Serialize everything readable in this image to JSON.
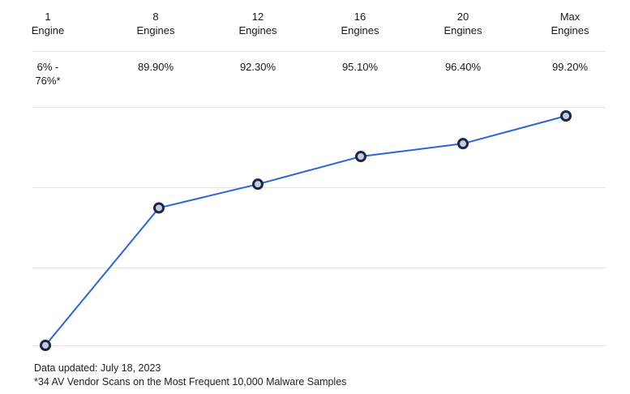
{
  "columns": [
    {
      "top": "1",
      "bottom": "Engine",
      "rate_lines": [
        "6% -",
        "76%*"
      ]
    },
    {
      "top": "8",
      "bottom": "Engines",
      "rate_lines": [
        "89.90%"
      ]
    },
    {
      "top": "12",
      "bottom": "Engines",
      "rate_lines": [
        "92.30%"
      ]
    },
    {
      "top": "16",
      "bottom": "Engines",
      "rate_lines": [
        "95.10%"
      ]
    },
    {
      "top": "20",
      "bottom": "Engines",
      "rate_lines": [
        "96.40%"
      ]
    },
    {
      "top": "Max",
      "bottom": "Engines",
      "rate_lines": [
        "99.20%"
      ]
    }
  ],
  "chart_data": {
    "type": "line",
    "categories": [
      "1 Engine",
      "8 Engines",
      "12 Engines",
      "16 Engines",
      "20 Engines",
      "Max Engines"
    ],
    "series": [
      {
        "values": [
          76,
          89.9,
          92.3,
          95.1,
          96.4,
          99.2
        ]
      }
    ],
    "ylim": [
      76,
      100
    ],
    "grid": true,
    "line_color": "#2a66d9",
    "marker_fill": "#c7cdd8",
    "marker_stroke": "#1a2747"
  },
  "footer": {
    "updated": "Data updated: July 18, 2023",
    "note": "*34 AV Vendor Scans on the Most Frequent 10,000 Malware Samples"
  }
}
